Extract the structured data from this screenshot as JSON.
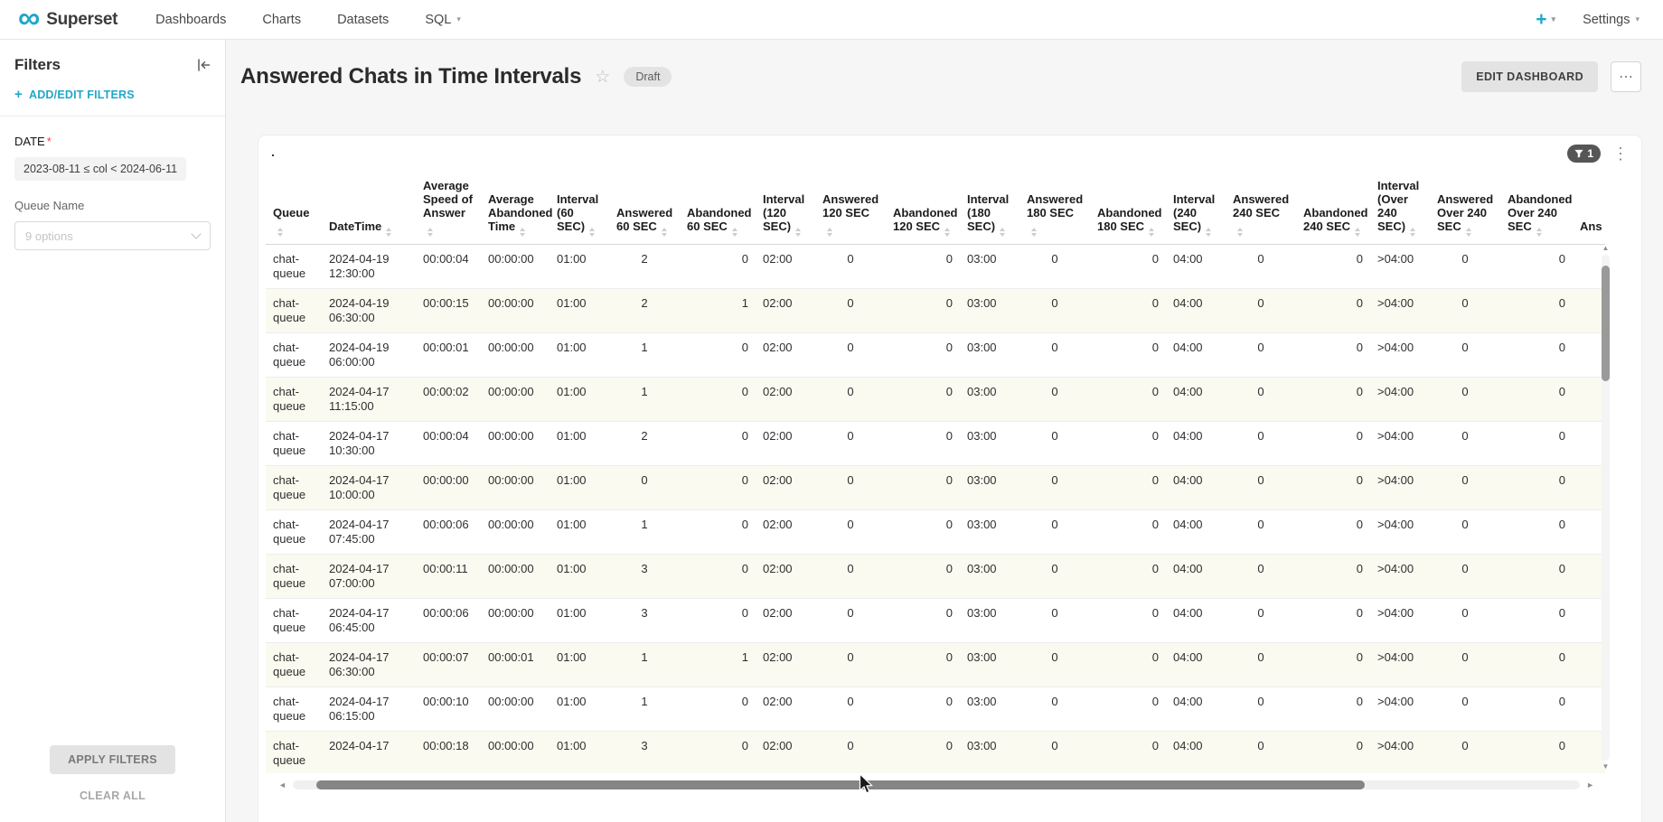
{
  "navbar": {
    "brand": "Superset",
    "items": [
      {
        "label": "Dashboards"
      },
      {
        "label": "Charts"
      },
      {
        "label": "Datasets"
      },
      {
        "label": "SQL"
      }
    ],
    "new_label": "+",
    "settings_label": "Settings"
  },
  "filters_panel": {
    "title": "Filters",
    "add_edit_label": "ADD/EDIT FILTERS",
    "date": {
      "label": "DATE",
      "required_marker": "*",
      "value": "2023-08-11 ≤ col < 2024-06-11"
    },
    "queue": {
      "label": "Queue Name",
      "placeholder": "9 options"
    },
    "apply_label": "APPLY FILTERS",
    "clear_label": "CLEAR ALL"
  },
  "dashboard": {
    "title": "Answered Chats in Time Intervals",
    "status_badge": "Draft",
    "edit_button_label": "EDIT DASHBOARD",
    "more_button_label": "⋯",
    "chart": {
      "title": ".",
      "applied_filter_count": "1"
    }
  },
  "icons": {
    "logo": "∞",
    "caret": "▾",
    "star": "☆",
    "kebab": "⋮",
    "scroll_up": "▲",
    "scroll_down": "▼",
    "scroll_left": "◄",
    "scroll_right": "►"
  },
  "table": {
    "columns": [
      {
        "label": "Queue",
        "align": "left"
      },
      {
        "label": "DateTime",
        "align": "left"
      },
      {
        "label": "Average Speed of Answer",
        "align": "left"
      },
      {
        "label": "Average Abandoned Time",
        "align": "left"
      },
      {
        "label": "Interval (60 SEC)",
        "align": "left"
      },
      {
        "label": "Answered 60 SEC",
        "align": "center"
      },
      {
        "label": "Abandoned 60 SEC",
        "align": "right"
      },
      {
        "label": "Interval (120 SEC)",
        "align": "left"
      },
      {
        "label": "Answered 120 SEC",
        "align": "center"
      },
      {
        "label": "Abandoned 120 SEC",
        "align": "right"
      },
      {
        "label": "Interval (180 SEC)",
        "align": "left"
      },
      {
        "label": "Answered 180 SEC",
        "align": "center"
      },
      {
        "label": "Abandoned 180 SEC",
        "align": "right"
      },
      {
        "label": "Interval (240 SEC)",
        "align": "left"
      },
      {
        "label": "Answered 240 SEC",
        "align": "center"
      },
      {
        "label": "Abandoned 240 SEC",
        "align": "right"
      },
      {
        "label": "Interval (Over 240 SEC)",
        "align": "left"
      },
      {
        "label": "Answered Over 240 SEC",
        "align": "center"
      },
      {
        "label": "Abandoned Over 240 SEC",
        "align": "right"
      },
      {
        "label": "Ans",
        "align": "left"
      }
    ],
    "rows": [
      [
        "chat-queue",
        "2024-04-19 12:30:00",
        "00:00:04",
        "00:00:00",
        "01:00",
        "2",
        "0",
        "02:00",
        "0",
        "0",
        "03:00",
        "0",
        "0",
        "04:00",
        "0",
        "0",
        ">04:00",
        "0",
        "0",
        ""
      ],
      [
        "chat-queue",
        "2024-04-19 06:30:00",
        "00:00:15",
        "00:00:00",
        "01:00",
        "2",
        "1",
        "02:00",
        "0",
        "0",
        "03:00",
        "0",
        "0",
        "04:00",
        "0",
        "0",
        ">04:00",
        "0",
        "0",
        ""
      ],
      [
        "chat-queue",
        "2024-04-19 06:00:00",
        "00:00:01",
        "00:00:00",
        "01:00",
        "1",
        "0",
        "02:00",
        "0",
        "0",
        "03:00",
        "0",
        "0",
        "04:00",
        "0",
        "0",
        ">04:00",
        "0",
        "0",
        ""
      ],
      [
        "chat-queue",
        "2024-04-17 11:15:00",
        "00:00:02",
        "00:00:00",
        "01:00",
        "1",
        "0",
        "02:00",
        "0",
        "0",
        "03:00",
        "0",
        "0",
        "04:00",
        "0",
        "0",
        ">04:00",
        "0",
        "0",
        ""
      ],
      [
        "chat-queue",
        "2024-04-17 10:30:00",
        "00:00:04",
        "00:00:00",
        "01:00",
        "2",
        "0",
        "02:00",
        "0",
        "0",
        "03:00",
        "0",
        "0",
        "04:00",
        "0",
        "0",
        ">04:00",
        "0",
        "0",
        ""
      ],
      [
        "chat-queue",
        "2024-04-17 10:00:00",
        "00:00:00",
        "00:00:00",
        "01:00",
        "0",
        "0",
        "02:00",
        "0",
        "0",
        "03:00",
        "0",
        "0",
        "04:00",
        "0",
        "0",
        ">04:00",
        "0",
        "0",
        ""
      ],
      [
        "chat-queue",
        "2024-04-17 07:45:00",
        "00:00:06",
        "00:00:00",
        "01:00",
        "1",
        "0",
        "02:00",
        "0",
        "0",
        "03:00",
        "0",
        "0",
        "04:00",
        "0",
        "0",
        ">04:00",
        "0",
        "0",
        ""
      ],
      [
        "chat-queue",
        "2024-04-17 07:00:00",
        "00:00:11",
        "00:00:00",
        "01:00",
        "3",
        "0",
        "02:00",
        "0",
        "0",
        "03:00",
        "0",
        "0",
        "04:00",
        "0",
        "0",
        ">04:00",
        "0",
        "0",
        ""
      ],
      [
        "chat-queue",
        "2024-04-17 06:45:00",
        "00:00:06",
        "00:00:00",
        "01:00",
        "3",
        "0",
        "02:00",
        "0",
        "0",
        "03:00",
        "0",
        "0",
        "04:00",
        "0",
        "0",
        ">04:00",
        "0",
        "0",
        ""
      ],
      [
        "chat-queue",
        "2024-04-17 06:30:00",
        "00:00:07",
        "00:00:01",
        "01:00",
        "1",
        "1",
        "02:00",
        "0",
        "0",
        "03:00",
        "0",
        "0",
        "04:00",
        "0",
        "0",
        ">04:00",
        "0",
        "0",
        ""
      ],
      [
        "chat-queue",
        "2024-04-17 06:15:00",
        "00:00:10",
        "00:00:00",
        "01:00",
        "1",
        "0",
        "02:00",
        "0",
        "0",
        "03:00",
        "0",
        "0",
        "04:00",
        "0",
        "0",
        ">04:00",
        "0",
        "0",
        ""
      ],
      [
        "chat-queue",
        "2024-04-17",
        "00:00:18",
        "00:00:00",
        "01:00",
        "3",
        "0",
        "02:00",
        "0",
        "0",
        "03:00",
        "0",
        "0",
        "04:00",
        "0",
        "0",
        ">04:00",
        "0",
        "0",
        ""
      ]
    ]
  }
}
